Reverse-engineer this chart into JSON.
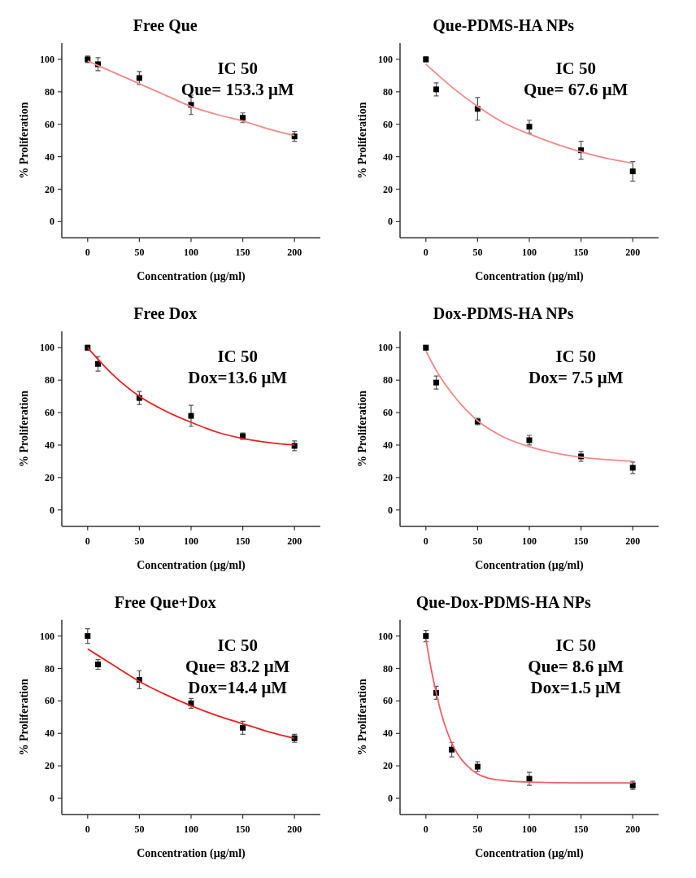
{
  "chart_data": [
    {
      "type": "scatter",
      "title": "Free Que",
      "xlabel": "Concentration (μg/ml)",
      "ylabel": "% Proliferation",
      "annotations": [
        "IC 50",
        "Que= 153.3 μM"
      ],
      "xlim": [
        -25,
        225
      ],
      "ylim": [
        -10,
        110
      ],
      "xticks": [
        0,
        50,
        100,
        150,
        200
      ],
      "yticks": [
        0,
        20,
        40,
        60,
        80,
        100
      ],
      "series": [
        {
          "type": "scatter",
          "marker": "square",
          "color": "#000000",
          "x": [
            0,
            10,
            50,
            100,
            150,
            200
          ],
          "values": [
            100,
            97,
            88.5,
            72,
            64,
            52.5
          ],
          "errors": [
            2,
            4,
            4,
            6,
            3,
            3
          ]
        },
        {
          "type": "line",
          "marker": "none",
          "line_style": "solid",
          "color": "#f08a8a",
          "x": [
            0,
            25,
            50,
            75,
            100,
            125,
            150,
            175,
            200
          ],
          "values": [
            99,
            92,
            85,
            78,
            71,
            66,
            62,
            57,
            53
          ]
        }
      ]
    },
    {
      "type": "scatter",
      "title": "Que-PDMS-HA NPs",
      "xlabel": "Concentration (μg/ml)",
      "ylabel": "% Proliferation",
      "annotations": [
        "IC 50",
        "Que= 67.6 μM"
      ],
      "xlim": [
        -25,
        225
      ],
      "ylim": [
        -10,
        110
      ],
      "xticks": [
        0,
        50,
        100,
        150,
        200
      ],
      "yticks": [
        0,
        20,
        40,
        60,
        80,
        100
      ],
      "series": [
        {
          "type": "scatter",
          "marker": "square",
          "color": "#000000",
          "x": [
            0,
            10,
            50,
            100,
            150,
            200
          ],
          "values": [
            100,
            81.5,
            69.5,
            58.5,
            44,
            31
          ],
          "errors": [
            1.5,
            4,
            7,
            4,
            5.5,
            6
          ]
        },
        {
          "type": "line",
          "marker": "none",
          "line_style": "solid",
          "color": "#f08a8a",
          "x": [
            0,
            25,
            50,
            75,
            100,
            125,
            150,
            175,
            200
          ],
          "values": [
            97,
            83,
            71,
            61,
            54,
            48,
            43,
            39,
            36
          ]
        }
      ]
    },
    {
      "type": "scatter",
      "title": "Free Dox",
      "xlabel": "Concentration (μg/ml)",
      "ylabel": "% Proliferation",
      "annotations": [
        "IC 50",
        "Dox=13.6 μM"
      ],
      "xlim": [
        -25,
        225
      ],
      "ylim": [
        -10,
        110
      ],
      "xticks": [
        0,
        50,
        100,
        150,
        200
      ],
      "yticks": [
        0,
        20,
        40,
        60,
        80,
        100
      ],
      "series": [
        {
          "type": "scatter",
          "marker": "square",
          "color": "#000000",
          "x": [
            0,
            10,
            50,
            100,
            150,
            200
          ],
          "values": [
            100,
            90,
            69,
            58,
            45.5,
            39.5
          ],
          "errors": [
            1.5,
            4.5,
            4,
            6.5,
            2,
            3
          ]
        },
        {
          "type": "line",
          "marker": "none",
          "line_style": "solid",
          "color": "#e8201f",
          "x": [
            0,
            25,
            50,
            75,
            100,
            125,
            150,
            175,
            200
          ],
          "values": [
            100,
            83,
            70,
            61,
            54,
            48,
            44,
            41.5,
            40
          ]
        }
      ]
    },
    {
      "type": "scatter",
      "title": "Dox-PDMS-HA NPs",
      "xlabel": "Concentration (μg/ml)",
      "ylabel": "% Proliferation",
      "annotations": [
        "IC 50",
        "Dox= 7.5 μM"
      ],
      "xlim": [
        -25,
        225
      ],
      "ylim": [
        -10,
        110
      ],
      "xticks": [
        0,
        50,
        100,
        150,
        200
      ],
      "yticks": [
        0,
        20,
        40,
        60,
        80,
        100
      ],
      "series": [
        {
          "type": "scatter",
          "marker": "square",
          "color": "#000000",
          "x": [
            0,
            10,
            50,
            100,
            150,
            200
          ],
          "values": [
            100,
            78.5,
            54.5,
            43,
            33,
            26
          ],
          "errors": [
            1.5,
            4,
            2,
            3,
            3,
            3.5
          ]
        },
        {
          "type": "line",
          "marker": "none",
          "line_style": "solid",
          "color": "#f08a8a",
          "x": [
            0,
            10,
            25,
            50,
            75,
            100,
            125,
            150,
            175,
            200
          ],
          "values": [
            98,
            86,
            72,
            55,
            45,
            39,
            35,
            32.5,
            31,
            30
          ]
        }
      ]
    },
    {
      "type": "scatter",
      "title": "Free Que+Dox",
      "xlabel": "Concentration (μg/ml)",
      "ylabel": "% Proliferation",
      "annotations": [
        "IC 50",
        "Que= 83.2 μM",
        "Dox=14.4 μM"
      ],
      "xlim": [
        -25,
        225
      ],
      "ylim": [
        -10,
        110
      ],
      "xticks": [
        0,
        50,
        100,
        150,
        200
      ],
      "yticks": [
        0,
        20,
        40,
        60,
        80,
        100
      ],
      "series": [
        {
          "type": "scatter",
          "marker": "square",
          "color": "#000000",
          "x": [
            0,
            10,
            50,
            100,
            150,
            200
          ],
          "values": [
            100,
            82.5,
            73,
            58.5,
            43.5,
            37
          ],
          "errors": [
            4.5,
            3,
            5.5,
            3,
            4,
            2.5
          ]
        },
        {
          "type": "line",
          "marker": "none",
          "line_style": "solid",
          "color": "#e8201f",
          "x": [
            0,
            25,
            50,
            75,
            100,
            125,
            150,
            175,
            200
          ],
          "values": [
            92,
            82,
            72,
            64,
            57,
            51,
            46,
            41,
            37
          ]
        }
      ]
    },
    {
      "type": "scatter",
      "title": "Que-Dox-PDMS-HA NPs",
      "xlabel": "Concentration (μg/ml)",
      "ylabel": "% Proliferation",
      "annotations": [
        "IC 50",
        "Que= 8.6 μM",
        "Dox=1.5 μM"
      ],
      "xlim": [
        -25,
        225
      ],
      "ylim": [
        -10,
        110
      ],
      "xticks": [
        0,
        50,
        100,
        150,
        200
      ],
      "yticks": [
        0,
        20,
        40,
        60,
        80,
        100
      ],
      "series": [
        {
          "type": "scatter",
          "marker": "square",
          "color": "#000000",
          "x": [
            0,
            10,
            25,
            50,
            100,
            200
          ],
          "values": [
            100,
            65,
            30,
            19.5,
            12,
            8
          ],
          "errors": [
            3.5,
            4,
            4.5,
            3,
            4,
            2.5
          ]
        },
        {
          "type": "line",
          "marker": "none",
          "line_style": "solid",
          "color": "#f0606a",
          "x": [
            0,
            5,
            10,
            15,
            20,
            25,
            30,
            40,
            50,
            60,
            75,
            100,
            150,
            200
          ],
          "values": [
            98,
            80,
            65,
            52,
            42,
            34,
            28,
            20,
            15,
            12.5,
            11,
            10,
            9.5,
            9.5
          ]
        }
      ]
    }
  ]
}
